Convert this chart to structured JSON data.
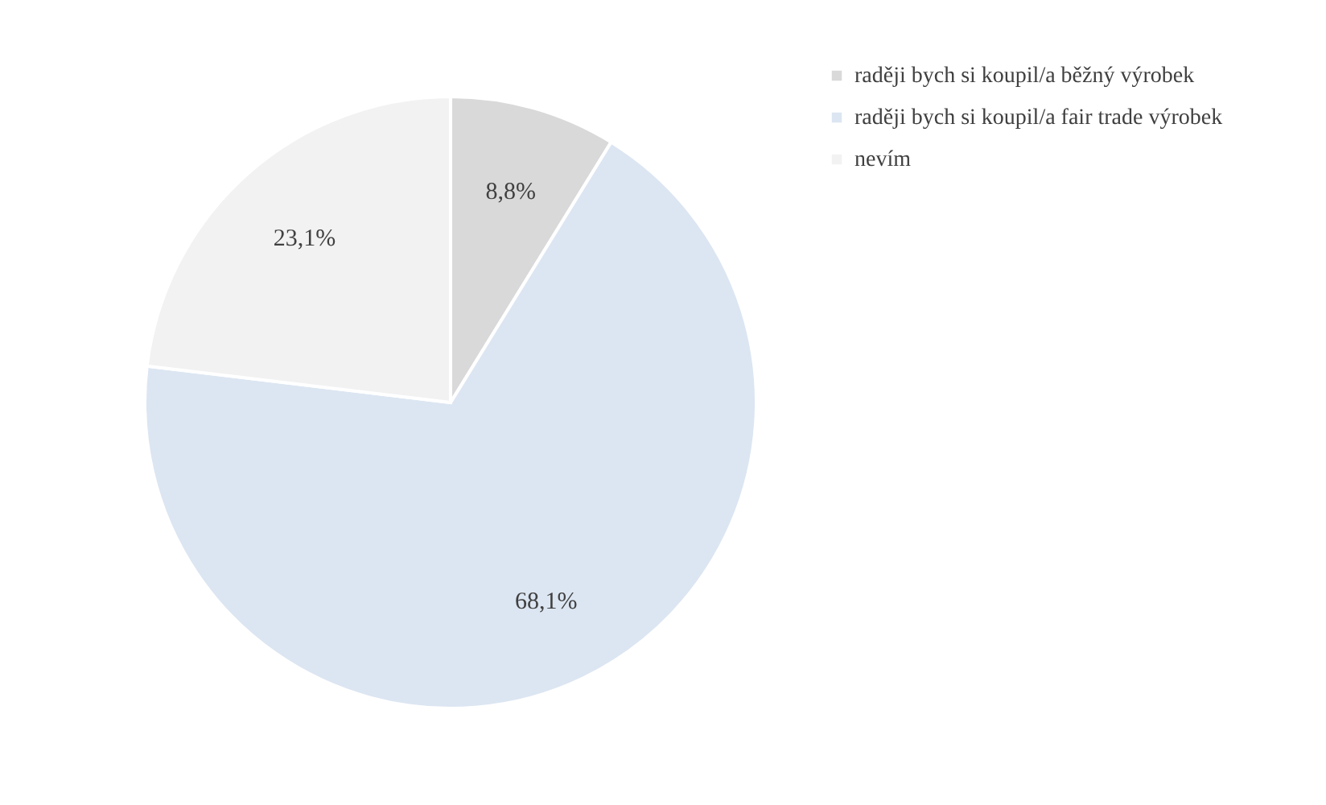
{
  "chart_data": {
    "type": "pie",
    "categories": [
      "raději bych si koupil/a běžný výrobek",
      "raději bych si koupil/a fair trade výrobek",
      "nevím"
    ],
    "values": [
      8.8,
      68.1,
      23.1
    ],
    "colors": [
      "#d9d9d9",
      "#dce6f2",
      "#f2f2f2"
    ],
    "value_labels": [
      "8,8%",
      "68,1%",
      "23,1%"
    ],
    "legend": "right"
  }
}
